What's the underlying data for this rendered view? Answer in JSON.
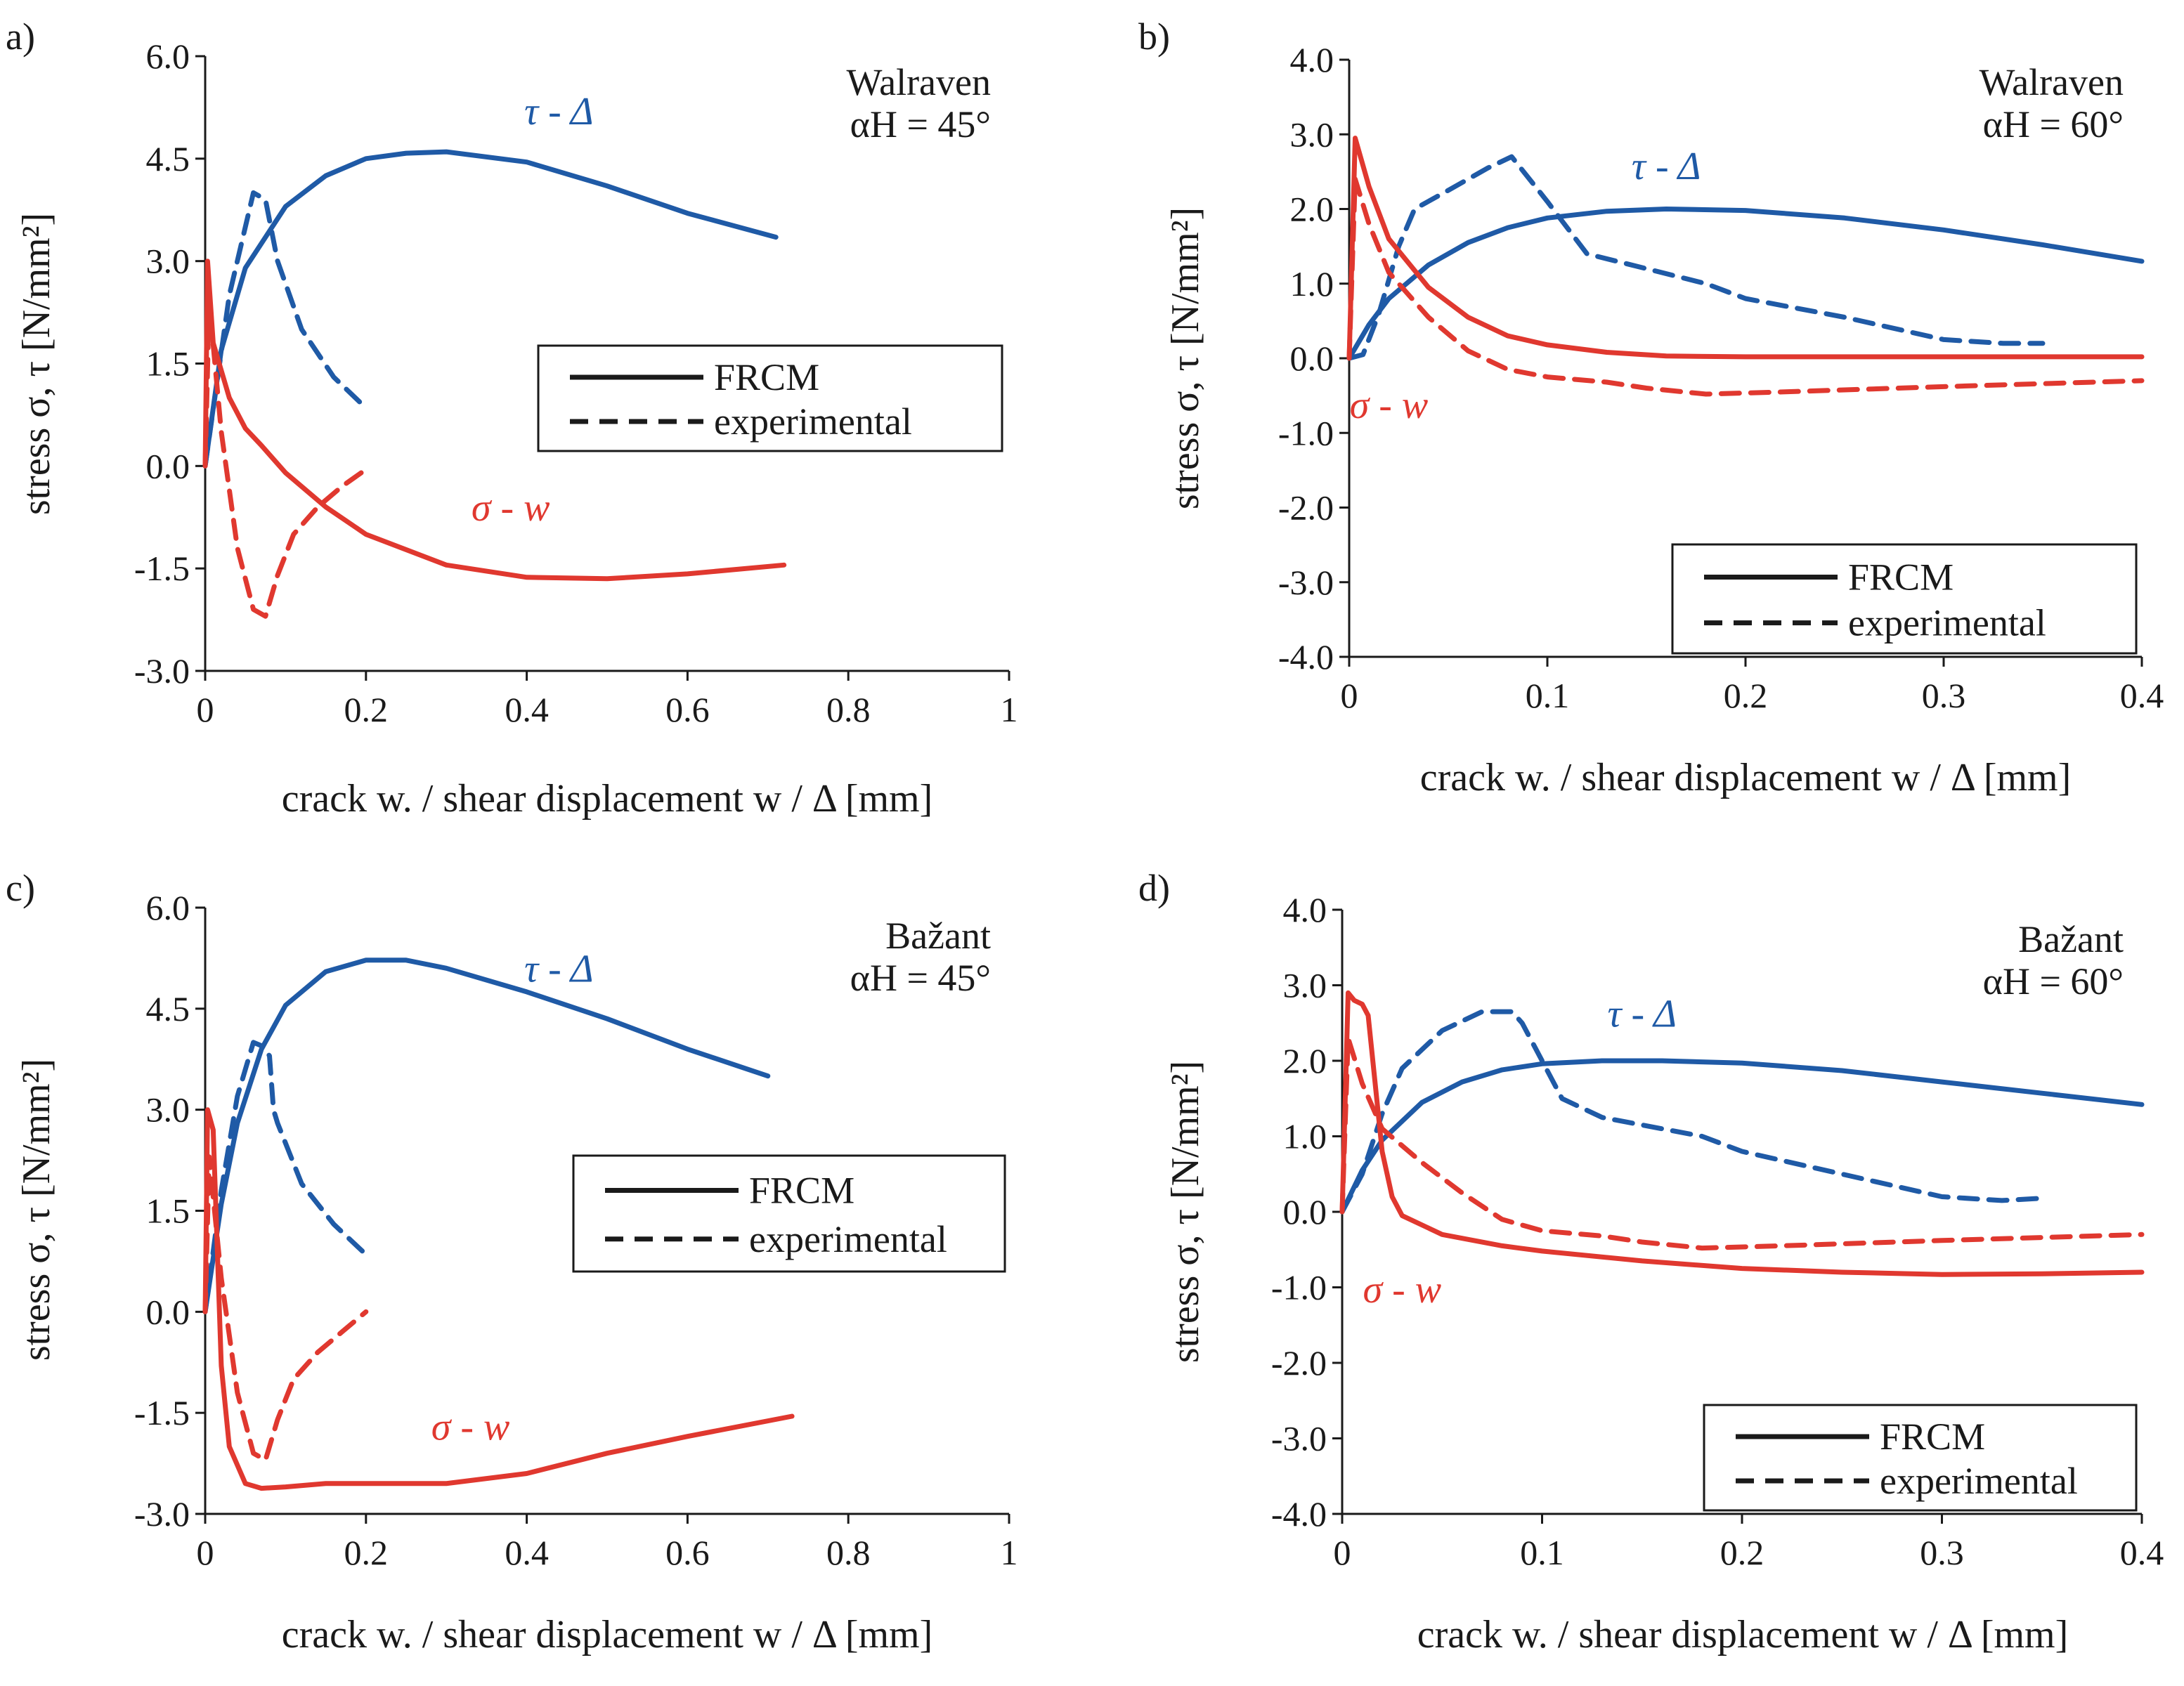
{
  "colors": {
    "tau": "#1f5aa6",
    "sigma": "#e0382f",
    "axis": "#1a1a1a"
  },
  "legend_entries": [
    {
      "label": "FRCM",
      "style": "solid"
    },
    {
      "label": "experimental",
      "style": "dashed"
    }
  ],
  "chart_data": [
    {
      "panel_label": "a)",
      "type": "line",
      "annotation_line1": "Walraven",
      "annotation_line2": "αH = 45°",
      "xlabel": "crack w. / shear displacement  w / Δ [mm]",
      "ylabel": "stress σ, τ [N/mm²]",
      "xlim": [
        0,
        1
      ],
      "ylim": [
        -3,
        6
      ],
      "xticks": [
        0,
        0.2,
        0.4,
        0.6,
        0.8,
        1
      ],
      "xtick_labels": [
        "0",
        "0.2",
        "0.4",
        "0.6",
        "0.8",
        "1"
      ],
      "yticks": [
        -3,
        -1.5,
        0,
        1.5,
        3,
        4.5,
        6
      ],
      "ytick_labels": [
        "-3.0",
        "-1.5",
        "0.0",
        "1.5",
        "3.0",
        "4.5",
        "6.0"
      ],
      "grid": false,
      "legend_position": "middle-right",
      "tau_label": "τ - Δ",
      "sigma_label": "σ - w",
      "tau_label_at": [
        0.44,
        5.0
      ],
      "sigma_label_at": [
        0.38,
        -0.8
      ],
      "series": [
        {
          "kind": "tau",
          "style": "solid",
          "x": [
            0,
            0.02,
            0.05,
            0.1,
            0.15,
            0.2,
            0.25,
            0.3,
            0.4,
            0.5,
            0.6,
            0.71
          ],
          "y": [
            0,
            1.7,
            2.9,
            3.8,
            4.25,
            4.5,
            4.58,
            4.6,
            4.45,
            4.1,
            3.7,
            3.35
          ]
        },
        {
          "kind": "tau",
          "style": "dashed",
          "x": [
            0,
            0.03,
            0.06,
            0.075,
            0.08,
            0.09,
            0.12,
            0.16,
            0.2
          ],
          "y": [
            0,
            2.5,
            4.0,
            3.9,
            3.6,
            3.0,
            2.0,
            1.3,
            0.85
          ]
        },
        {
          "kind": "sigma",
          "style": "solid",
          "x": [
            0,
            0.003,
            0.01,
            0.03,
            0.05,
            0.07,
            0.1,
            0.15,
            0.2,
            0.3,
            0.4,
            0.5,
            0.6,
            0.72
          ],
          "y": [
            0,
            3.0,
            1.8,
            1.0,
            0.55,
            0.3,
            -0.1,
            -0.6,
            -1.0,
            -1.45,
            -1.63,
            -1.65,
            -1.58,
            -1.45
          ]
        },
        {
          "kind": "sigma",
          "style": "dashed",
          "x": [
            0,
            0.005,
            0.02,
            0.04,
            0.06,
            0.075,
            0.09,
            0.11,
            0.14,
            0.17,
            0.2
          ],
          "y": [
            0,
            2.4,
            0.5,
            -1.2,
            -2.1,
            -2.2,
            -1.6,
            -1.0,
            -0.6,
            -0.3,
            -0.05
          ]
        }
      ]
    },
    {
      "panel_label": "b)",
      "type": "line",
      "annotation_line1": "Walraven",
      "annotation_line2": "αH = 60°",
      "xlabel": "crack w. / shear displacement w / Δ [mm]",
      "ylabel": "stress σ, τ [N/mm²]",
      "xlim": [
        0,
        0.4
      ],
      "ylim": [
        -4,
        4
      ],
      "xticks": [
        0,
        0.1,
        0.2,
        0.3,
        0.4
      ],
      "xtick_labels": [
        "0",
        "0.1",
        "0.2",
        "0.3",
        "0.4"
      ],
      "yticks": [
        -4,
        -3,
        -2,
        -1,
        0,
        1,
        2,
        3,
        4
      ],
      "ytick_labels": [
        "-4.0",
        "-3.0",
        "-2.0",
        "-1.0",
        "0.0",
        "1.0",
        "2.0",
        "3.0",
        "4.0"
      ],
      "grid": false,
      "legend_position": "bottom-right",
      "tau_label": "τ - Δ",
      "sigma_label": "σ - w",
      "tau_label_at": [
        0.16,
        2.4
      ],
      "sigma_label_at": [
        0.02,
        -0.8
      ],
      "series": [
        {
          "kind": "tau",
          "style": "solid",
          "x": [
            0,
            0.01,
            0.02,
            0.04,
            0.06,
            0.08,
            0.1,
            0.13,
            0.16,
            0.2,
            0.25,
            0.3,
            0.35,
            0.4
          ],
          "y": [
            0,
            0.45,
            0.8,
            1.25,
            1.55,
            1.75,
            1.88,
            1.97,
            2.0,
            1.98,
            1.88,
            1.72,
            1.52,
            1.3
          ]
        },
        {
          "kind": "tau",
          "style": "dashed",
          "x": [
            0,
            0.007,
            0.015,
            0.025,
            0.033,
            0.05,
            0.07,
            0.082,
            0.1,
            0.12,
            0.15,
            0.18,
            0.2,
            0.25,
            0.3,
            0.33,
            0.35
          ],
          "y": [
            0,
            0.05,
            0.6,
            1.5,
            2.0,
            2.25,
            2.55,
            2.7,
            2.1,
            1.4,
            1.2,
            1.0,
            0.8,
            0.55,
            0.25,
            0.2,
            0.2
          ]
        },
        {
          "kind": "sigma",
          "style": "solid",
          "x": [
            0,
            0.003,
            0.01,
            0.02,
            0.04,
            0.06,
            0.08,
            0.1,
            0.13,
            0.16,
            0.2,
            0.3,
            0.4
          ],
          "y": [
            0,
            2.95,
            2.3,
            1.6,
            0.95,
            0.55,
            0.3,
            0.18,
            0.08,
            0.03,
            0.02,
            0.02,
            0.02
          ]
        },
        {
          "kind": "sigma",
          "style": "dashed",
          "x": [
            0,
            0.003,
            0.01,
            0.02,
            0.04,
            0.06,
            0.08,
            0.1,
            0.13,
            0.15,
            0.18,
            0.22,
            0.3,
            0.4
          ],
          "y": [
            0,
            2.4,
            1.8,
            1.15,
            0.55,
            0.1,
            -0.15,
            -0.25,
            -0.32,
            -0.4,
            -0.48,
            -0.45,
            -0.38,
            -0.3
          ]
        }
      ]
    },
    {
      "panel_label": "c)",
      "type": "line",
      "annotation_line1": "Bažant",
      "annotation_line2": "αH = 45°",
      "xlabel": "crack w. / shear displacement w / Δ [mm]",
      "ylabel": "stress σ, τ [N/mm²]",
      "xlim": [
        0,
        1
      ],
      "ylim": [
        -3,
        6
      ],
      "xticks": [
        0,
        0.2,
        0.4,
        0.6,
        0.8,
        1
      ],
      "xtick_labels": [
        "0",
        "0.2",
        "0.4",
        "0.6",
        "0.8",
        "1"
      ],
      "yticks": [
        -3,
        -1.5,
        0,
        1.5,
        3,
        4.5,
        6
      ],
      "ytick_labels": [
        "-3.0",
        "-1.5",
        "0.0",
        "1.5",
        "3.0",
        "4.5",
        "6.0"
      ],
      "grid": false,
      "legend_position": "middle-right",
      "tau_label": "τ - Δ",
      "sigma_label": "σ - w",
      "tau_label_at": [
        0.44,
        4.9
      ],
      "sigma_label_at": [
        0.33,
        -1.9
      ],
      "series": [
        {
          "kind": "tau",
          "style": "solid",
          "x": [
            0,
            0.02,
            0.04,
            0.07,
            0.1,
            0.15,
            0.2,
            0.25,
            0.3,
            0.4,
            0.5,
            0.6,
            0.7
          ],
          "y": [
            0,
            1.6,
            2.8,
            3.9,
            4.55,
            5.05,
            5.22,
            5.22,
            5.1,
            4.75,
            4.35,
            3.9,
            3.5
          ]
        },
        {
          "kind": "tau",
          "style": "dashed",
          "x": [
            0,
            0.02,
            0.04,
            0.06,
            0.07,
            0.08,
            0.085,
            0.09,
            0.12,
            0.16,
            0.2
          ],
          "y": [
            0,
            1.8,
            3.2,
            4.0,
            3.95,
            3.8,
            3.0,
            2.8,
            1.9,
            1.3,
            0.85
          ]
        },
        {
          "kind": "sigma",
          "style": "solid",
          "x": [
            0,
            0.003,
            0.01,
            0.02,
            0.03,
            0.05,
            0.07,
            0.1,
            0.15,
            0.2,
            0.3,
            0.4,
            0.5,
            0.6,
            0.73
          ],
          "y": [
            0,
            3.0,
            2.7,
            -0.8,
            -2.0,
            -2.55,
            -2.62,
            -2.6,
            -2.55,
            -2.55,
            -2.55,
            -2.4,
            -2.1,
            -1.85,
            -1.55
          ]
        },
        {
          "kind": "sigma",
          "style": "dashed",
          "x": [
            0,
            0.005,
            0.02,
            0.04,
            0.06,
            0.075,
            0.09,
            0.11,
            0.14,
            0.17,
            0.2
          ],
          "y": [
            0,
            2.3,
            0.5,
            -1.2,
            -2.1,
            -2.2,
            -1.6,
            -1.0,
            -0.6,
            -0.3,
            0.0
          ]
        }
      ]
    },
    {
      "panel_label": "d)",
      "type": "line",
      "annotation_line1": "Bažant",
      "annotation_line2": "αH = 60°",
      "xlabel": "crack w. / shear displacement w / Δ [mm]",
      "ylabel": "stress σ, τ [N/mm²]",
      "xlim": [
        0,
        0.4
      ],
      "ylim": [
        -4,
        4
      ],
      "xticks": [
        0,
        0.1,
        0.2,
        0.3,
        0.4
      ],
      "xtick_labels": [
        "0",
        "0.1",
        "0.2",
        "0.3",
        "0.4"
      ],
      "yticks": [
        -4,
        -3,
        -2,
        -1,
        0,
        1,
        2,
        3,
        4
      ],
      "ytick_labels": [
        "-4.0",
        "-3.0",
        "-2.0",
        "-1.0",
        "0.0",
        "1.0",
        "2.0",
        "3.0",
        "4.0"
      ],
      "grid": false,
      "legend_position": "bottom-right",
      "tau_label": "τ - Δ",
      "sigma_label": "σ - w",
      "tau_label_at": [
        0.15,
        2.45
      ],
      "sigma_label_at": [
        0.03,
        -1.2
      ],
      "series": [
        {
          "kind": "tau",
          "style": "solid",
          "x": [
            0,
            0.01,
            0.02,
            0.04,
            0.06,
            0.08,
            0.1,
            0.13,
            0.16,
            0.2,
            0.25,
            0.3,
            0.35,
            0.4
          ],
          "y": [
            0,
            0.55,
            0.95,
            1.45,
            1.72,
            1.88,
            1.96,
            2.0,
            2.0,
            1.97,
            1.87,
            1.72,
            1.57,
            1.42
          ]
        },
        {
          "kind": "tau",
          "style": "dashed",
          "x": [
            0,
            0.01,
            0.02,
            0.03,
            0.05,
            0.07,
            0.085,
            0.09,
            0.1,
            0.11,
            0.13,
            0.16,
            0.18,
            0.2,
            0.25,
            0.3,
            0.33,
            0.35
          ],
          "y": [
            0,
            0.5,
            1.3,
            1.9,
            2.4,
            2.65,
            2.65,
            2.5,
            2.0,
            1.5,
            1.25,
            1.1,
            1.0,
            0.8,
            0.5,
            0.2,
            0.15,
            0.18
          ]
        },
        {
          "kind": "sigma",
          "style": "solid",
          "x": [
            0,
            0.003,
            0.006,
            0.01,
            0.013,
            0.02,
            0.025,
            0.03,
            0.05,
            0.08,
            0.1,
            0.15,
            0.2,
            0.25,
            0.3,
            0.35,
            0.4
          ],
          "y": [
            0,
            2.9,
            2.8,
            2.75,
            2.6,
            0.8,
            0.2,
            -0.05,
            -0.3,
            -0.45,
            -0.52,
            -0.65,
            -0.75,
            -0.8,
            -0.83,
            -0.82,
            -0.8
          ]
        },
        {
          "kind": "sigma",
          "style": "dashed",
          "x": [
            0,
            0.003,
            0.01,
            0.02,
            0.04,
            0.06,
            0.08,
            0.1,
            0.13,
            0.15,
            0.18,
            0.22,
            0.3,
            0.4
          ],
          "y": [
            0,
            2.3,
            1.7,
            1.1,
            0.65,
            0.25,
            -0.1,
            -0.25,
            -0.32,
            -0.4,
            -0.48,
            -0.45,
            -0.38,
            -0.3
          ]
        }
      ]
    }
  ]
}
